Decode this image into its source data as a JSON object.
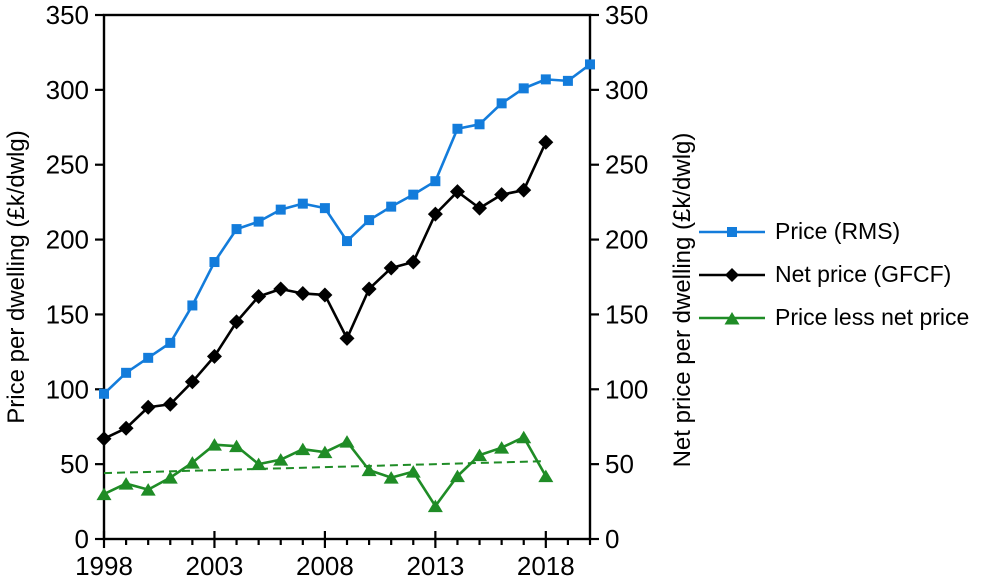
{
  "chart_data": {
    "type": "line",
    "title": "",
    "left_axis_label": "Price per dwelling (£k/dwlg)",
    "right_axis_label": "Net price per dwelling (£k/dwlg)",
    "xlim": [
      1998,
      2020
    ],
    "ylim": [
      0,
      350
    ],
    "y_ticks": [
      0,
      50,
      100,
      150,
      200,
      250,
      300,
      350
    ],
    "x_major_ticks": [
      1998,
      2003,
      2008,
      2013,
      2018
    ],
    "x_minor_tick_step_years": 1,
    "grid": false,
    "legend_position": "right",
    "x": [
      1998,
      1999,
      2000,
      2001,
      2002,
      2003,
      2004,
      2005,
      2006,
      2007,
      2008,
      2009,
      2010,
      2011,
      2012,
      2013,
      2014,
      2015,
      2016,
      2017,
      2018,
      2019,
      2020
    ],
    "series": [
      {
        "name": "Price (RMS)",
        "color": "#137cdb",
        "marker": "square",
        "values": [
          97,
          111,
          121,
          131,
          156,
          185,
          207,
          212,
          220,
          224,
          221,
          199,
          213,
          222,
          230,
          239,
          274,
          277,
          291,
          301,
          307,
          306,
          317
        ]
      },
      {
        "name": "Net price (GFCF)",
        "color": "#000000",
        "marker": "diamond",
        "values": [
          67,
          74,
          88,
          90,
          105,
          122,
          145,
          162,
          167,
          164,
          163,
          134,
          167,
          181,
          185,
          217,
          232,
          221,
          230,
          233,
          265,
          null,
          null
        ]
      },
      {
        "name": "Price less net price",
        "color": "#1f8c26",
        "marker": "triangle",
        "values": [
          30,
          37,
          33,
          41,
          51,
          63,
          62,
          50,
          53,
          60,
          58,
          65,
          46,
          41,
          45,
          22,
          42,
          56,
          61,
          68,
          42,
          null,
          null
        ]
      }
    ],
    "trend_line": {
      "series": "Price less net price",
      "style": "dashed",
      "color": "#1f8c26",
      "x": [
        1998,
        2018
      ],
      "values": [
        44,
        52
      ]
    }
  }
}
